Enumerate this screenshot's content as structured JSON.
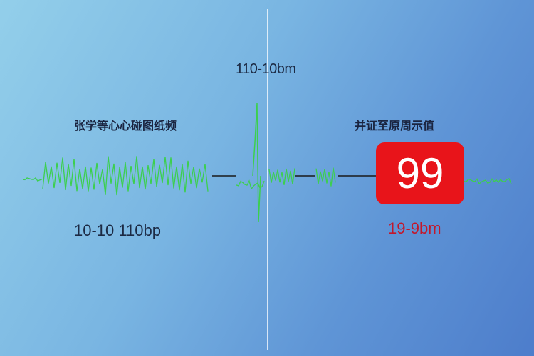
{
  "top_label": "110-10bm",
  "left_panel": {
    "title": "张学等心心碰图纸频",
    "value": "10-10   110bp"
  },
  "right_panel": {
    "title": "并证至原周示值",
    "heart_rate": "99",
    "range": "19-9bm"
  },
  "colors": {
    "waveform": "#3ccf4e",
    "baseline": "#1a1a1a",
    "alert": "#e8141a",
    "range_text": "#c3172a"
  }
}
